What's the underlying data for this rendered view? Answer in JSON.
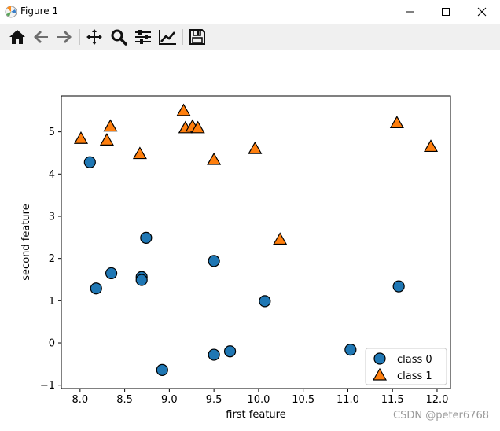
{
  "window": {
    "title": "Figure 1",
    "controls": {
      "minimize": "minimize",
      "maximize": "maximize",
      "close": "close"
    }
  },
  "toolbar": {
    "buttons": [
      {
        "name": "home",
        "icon": "home-icon"
      },
      {
        "name": "back",
        "icon": "arrow-left-icon"
      },
      {
        "name": "forward",
        "icon": "arrow-right-icon"
      },
      {
        "name": "pan",
        "icon": "move-icon"
      },
      {
        "name": "zoom",
        "icon": "magnifier-icon"
      },
      {
        "name": "configure-subplots",
        "icon": "sliders-icon"
      },
      {
        "name": "edit-axis",
        "icon": "line-chart-icon"
      },
      {
        "name": "save",
        "icon": "floppy-disk-icon"
      }
    ]
  },
  "watermark": "CSDN @peter6768",
  "chart_data": {
    "type": "scatter",
    "title": "",
    "xlabel": "first feature",
    "ylabel": "second feature",
    "xlim": [
      7.79,
      12.15
    ],
    "ylim": [
      -1.08,
      5.85
    ],
    "xticks": [
      8.0,
      8.5,
      9.0,
      9.5,
      10.0,
      10.5,
      11.0,
      11.5,
      12.0
    ],
    "xtick_labels": [
      "8.0",
      "8.5",
      "9.0",
      "9.5",
      "10.0",
      "10.5",
      "11.0",
      "11.5",
      "12.0"
    ],
    "yticks": [
      -1,
      0,
      1,
      2,
      3,
      4,
      5
    ],
    "ytick_labels": [
      "−1",
      "0",
      "1",
      "2",
      "3",
      "4",
      "5"
    ],
    "grid": false,
    "legend": {
      "placement": "lower-right"
    },
    "series": [
      {
        "name": "class 0",
        "marker": "circle",
        "color": "#1f77b4",
        "points": [
          [
            8.11,
            4.28
          ],
          [
            8.18,
            1.29
          ],
          [
            8.35,
            1.65
          ],
          [
            8.69,
            1.56
          ],
          [
            8.69,
            1.49
          ],
          [
            8.74,
            2.49
          ],
          [
            8.92,
            -0.64
          ],
          [
            9.5,
            1.94
          ],
          [
            9.5,
            -0.28
          ],
          [
            9.68,
            -0.2
          ],
          [
            10.07,
            0.99
          ],
          [
            11.03,
            -0.16
          ],
          [
            11.57,
            1.34
          ]
        ]
      },
      {
        "name": "class 1",
        "marker": "triangle",
        "color": "#ff7f0e",
        "points": [
          [
            8.01,
            4.84
          ],
          [
            8.3,
            4.8
          ],
          [
            8.34,
            5.13
          ],
          [
            8.67,
            4.48
          ],
          [
            9.16,
            5.5
          ],
          [
            9.18,
            5.09
          ],
          [
            9.26,
            5.13
          ],
          [
            9.32,
            5.09
          ],
          [
            9.5,
            4.34
          ],
          [
            9.96,
            4.6
          ],
          [
            10.24,
            2.45
          ],
          [
            11.55,
            5.21
          ],
          [
            11.93,
            4.65
          ]
        ]
      }
    ]
  }
}
